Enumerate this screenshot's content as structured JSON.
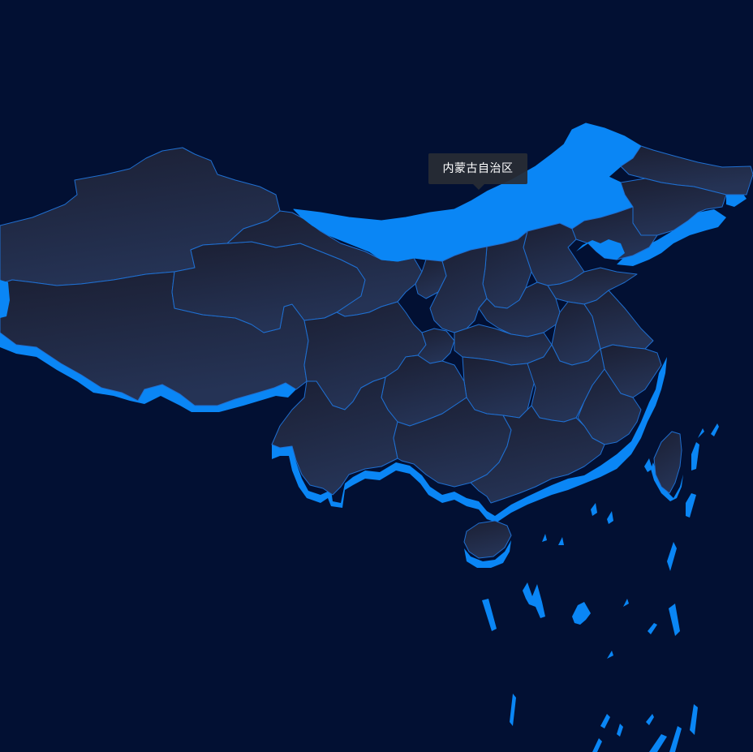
{
  "map": {
    "highlighted_region": "内蒙古自治区",
    "colors": {
      "background": "#021033",
      "land_top": "#1b1f33",
      "land_bottom": "#253355",
      "border": "#1f6fd1",
      "highlight": "#0a86f5",
      "extrusion": "#0a86f5"
    }
  },
  "tooltip": {
    "label": "内蒙古自治区"
  }
}
